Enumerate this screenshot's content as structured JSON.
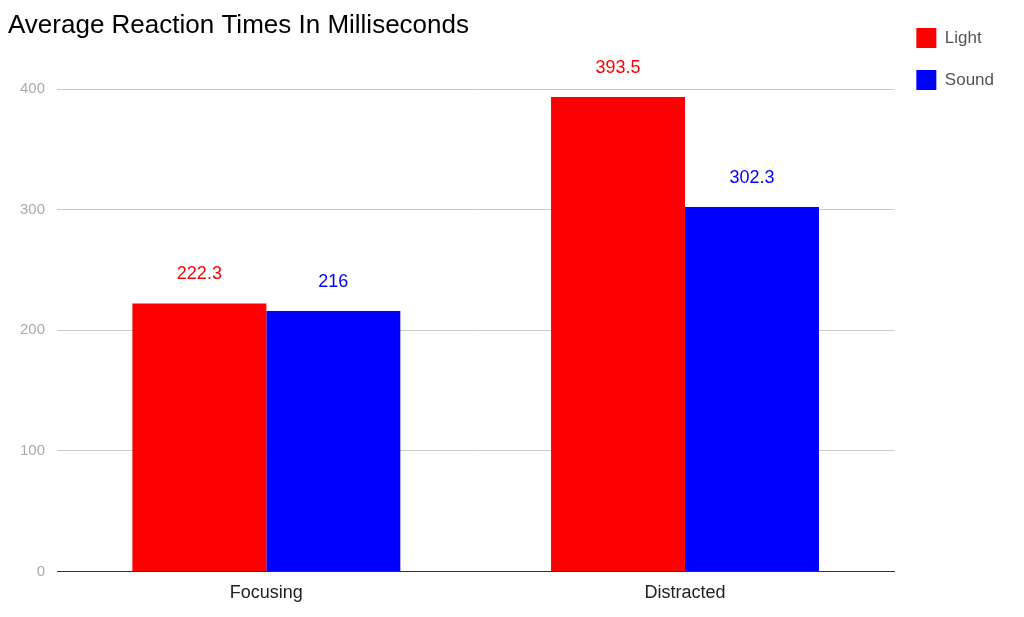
{
  "chart_data": {
    "type": "bar",
    "title": "Average Reaction Times In Milliseconds",
    "categories": [
      "Focusing",
      "Distracted"
    ],
    "series": [
      {
        "name": "Light",
        "color": "#ff0000",
        "values": [
          222.3,
          393.5
        ]
      },
      {
        "name": "Sound",
        "color": "#0000ff",
        "values": [
          216,
          302.3
        ]
      }
    ],
    "ylim": [
      0,
      400
    ],
    "yticks": [
      0,
      100,
      200,
      300,
      400
    ],
    "grid": true,
    "legend": "right",
    "data_labels": true
  }
}
